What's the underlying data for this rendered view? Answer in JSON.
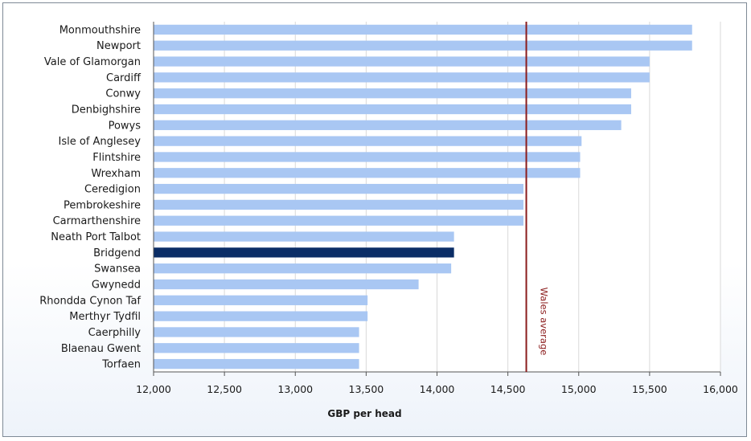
{
  "chart_data": {
    "type": "bar",
    "orientation": "horizontal",
    "title": "",
    "xlabel": "GBP per head",
    "ylabel": "",
    "xlim": [
      12000,
      16000
    ],
    "xticks": [
      12000,
      12500,
      13000,
      13500,
      14000,
      14500,
      15000,
      15500,
      16000
    ],
    "xtick_labels": [
      "12,000",
      "12,500",
      "13,000",
      "13,500",
      "14,000",
      "14,500",
      "15,000",
      "15,500",
      "16,000"
    ],
    "grid": "vertical",
    "categories": [
      "Monmouthshire",
      "Newport",
      "Vale of Glamorgan",
      "Cardiff",
      "Conwy",
      "Denbighshire",
      "Powys",
      "Isle of Anglesey",
      "Flintshire",
      "Wrexham",
      "Ceredigion",
      "Pembrokeshire",
      "Carmarthenshire",
      "Neath Port Talbot",
      "Bridgend",
      "Swansea",
      "Gwynedd",
      "Rhondda Cynon Taf",
      "Merthyr Tydfil",
      "Caerphilly",
      "Blaenau Gwent",
      "Torfaen"
    ],
    "values": [
      15800,
      15800,
      15500,
      15500,
      15370,
      15370,
      15300,
      15020,
      15010,
      15010,
      14610,
      14610,
      14610,
      14120,
      14120,
      14100,
      13870,
      13510,
      13510,
      13450,
      13450,
      13450
    ],
    "highlight": "Bridgend",
    "colors": {
      "bar": "#a9c7f3",
      "highlight": "#0b2d66",
      "reference": "#8b1c1c",
      "grid": "#d9d9d9"
    },
    "reference_line": {
      "value": 14630,
      "label": "Wales average"
    }
  }
}
